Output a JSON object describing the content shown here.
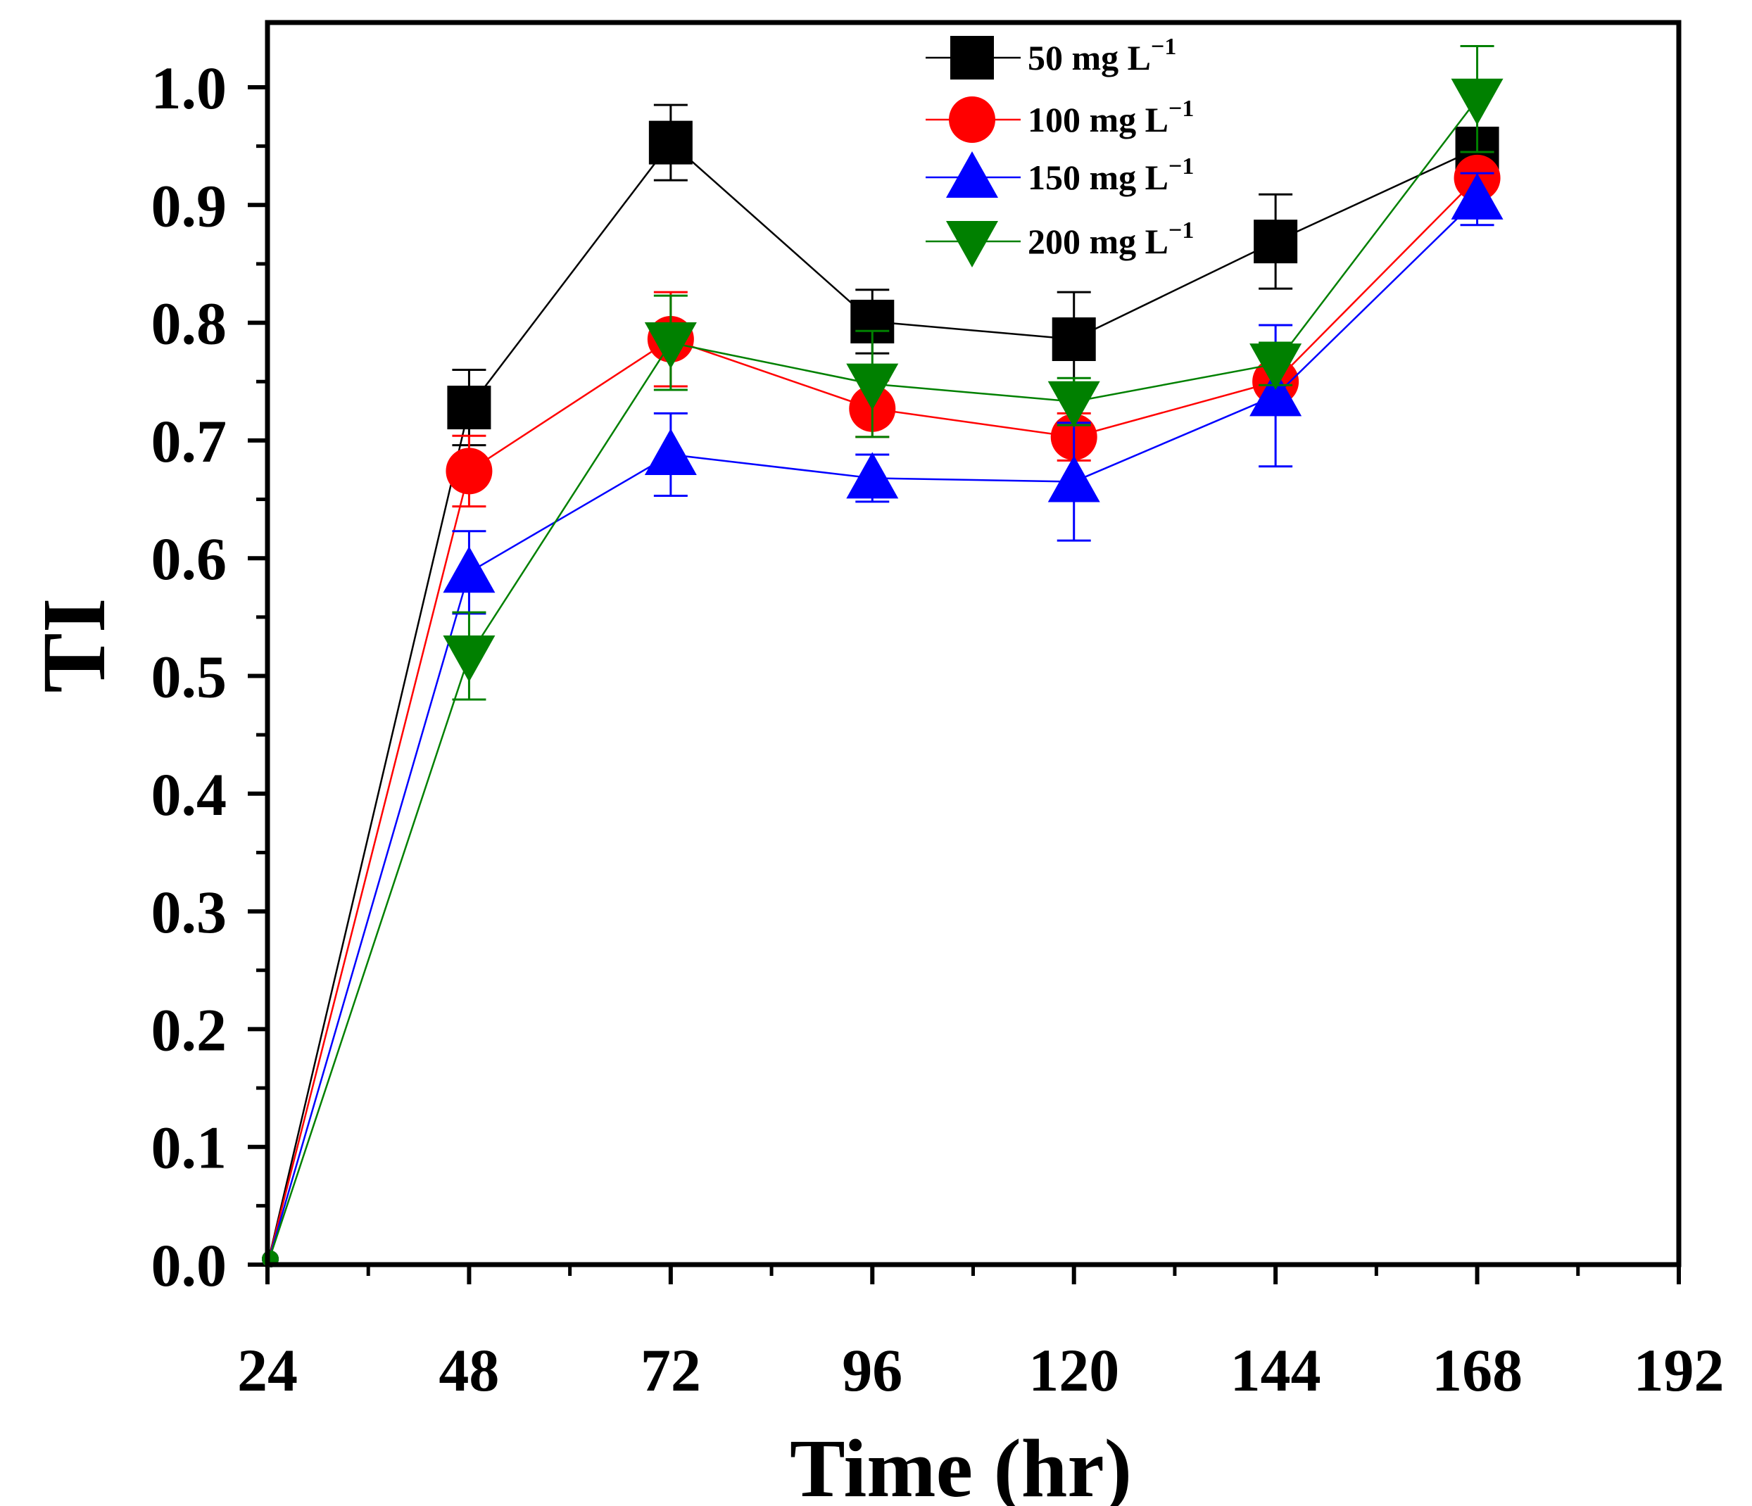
{
  "chart_data": {
    "type": "line",
    "title": "",
    "xlabel": "Time (hr)",
    "ylabel": "TI",
    "xlim": [
      24,
      192
    ],
    "ylim": [
      0,
      1.05
    ],
    "x_ticks": [
      24,
      48,
      72,
      96,
      120,
      144,
      168,
      192
    ],
    "y_ticks": [
      0.0,
      0.1,
      0.2,
      0.3,
      0.4,
      0.5,
      0.6,
      0.7,
      0.8,
      0.9,
      1.0
    ],
    "x_tick_labels": [
      "24",
      "48",
      "72",
      "96",
      "120",
      "144",
      "168",
      "192"
    ],
    "y_tick_labels": [
      "0.0",
      "0.1",
      "0.2",
      "0.3",
      "0.4",
      "0.5",
      "0.6",
      "0.7",
      "0.8",
      "0.9",
      "1.0"
    ],
    "grid": false,
    "legend_position": "top-center",
    "series": [
      {
        "name": "50 mg L",
        "name_superscript": "−1",
        "color": "#000000",
        "marker": "square",
        "x": [
          24,
          48,
          72,
          96,
          120,
          144,
          168
        ],
        "y": [
          0.0,
          0.728,
          0.953,
          0.801,
          0.786,
          0.869,
          0.948
        ],
        "error": [
          0.0,
          0.032,
          0.032,
          0.027,
          0.04,
          0.04,
          0.008
        ]
      },
      {
        "name": "100 mg L",
        "name_superscript": "−1",
        "color": "#ff0000",
        "marker": "circle",
        "x": [
          24,
          48,
          72,
          96,
          120,
          144,
          168
        ],
        "y": [
          0.0,
          0.674,
          0.786,
          0.727,
          0.703,
          0.75,
          0.923
        ],
        "error": [
          0.0,
          0.03,
          0.04,
          0.024,
          0.02,
          0.025,
          0.01
        ]
      },
      {
        "name": "150 mg L",
        "name_superscript": "−1",
        "color": "#0000ff",
        "marker": "triangle-up",
        "x": [
          24,
          48,
          72,
          96,
          120,
          144,
          168
        ],
        "y": [
          0.0,
          0.588,
          0.688,
          0.668,
          0.665,
          0.738,
          0.905
        ],
        "error": [
          0.0,
          0.035,
          0.035,
          0.02,
          0.05,
          0.06,
          0.022
        ]
      },
      {
        "name": "200 mg L",
        "name_superscript": "−1",
        "color": "#008000",
        "marker": "triangle-down",
        "x": [
          24,
          48,
          72,
          96,
          120,
          144,
          168
        ],
        "y": [
          0.0,
          0.517,
          0.783,
          0.748,
          0.733,
          0.765,
          0.99
        ],
        "error": [
          0.0,
          0.037,
          0.04,
          0.045,
          0.02,
          0.018,
          0.045
        ]
      }
    ]
  }
}
